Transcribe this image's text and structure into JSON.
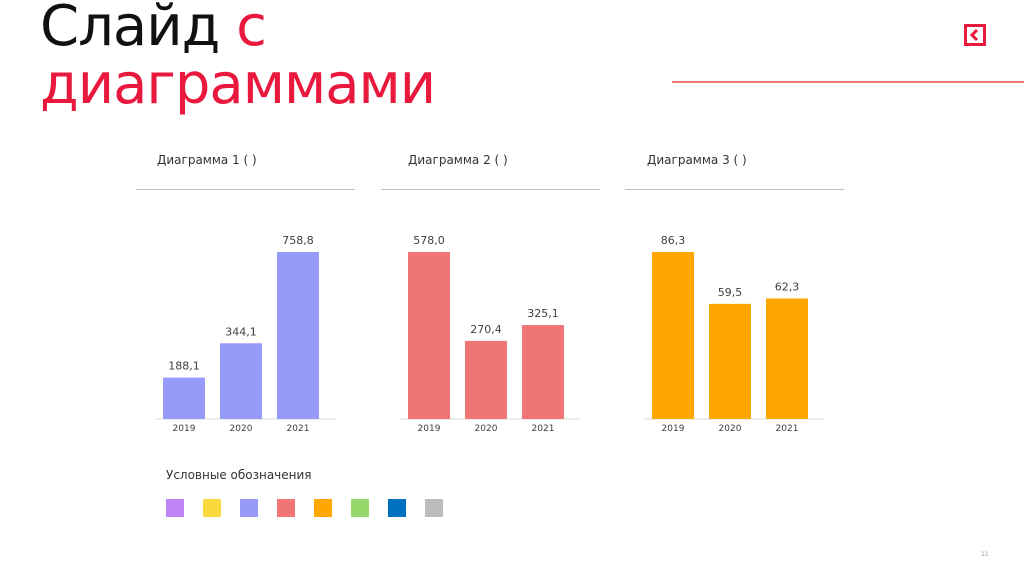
{
  "slide": {
    "title_part1": "Слайд",
    "title_part2": "с",
    "title_line2": "диаграммами",
    "page_number": "11"
  },
  "legend": {
    "title": "Условные обозначения",
    "swatches": [
      "#c084f5",
      "#fbd83e",
      "#969bf9",
      "#f07676",
      "#ffa600",
      "#97d86b",
      "#0071c1",
      "#bdbdbd"
    ]
  },
  "chart_data": [
    {
      "type": "bar",
      "title": "Диаграмма 1 ( )",
      "categories": [
        "2019",
        "2020",
        "2021"
      ],
      "values": [
        188.1,
        344.1,
        758.8
      ],
      "value_labels": [
        "188,1",
        "344,1",
        "758,8"
      ],
      "color": "#969bf9",
      "ylim": [
        0,
        758.8
      ]
    },
    {
      "type": "bar",
      "title": "Диаграмма 2 ( )",
      "categories": [
        "2019",
        "2020",
        "2021"
      ],
      "values": [
        578.0,
        270.4,
        325.1
      ],
      "value_labels": [
        "578,0",
        "270,4",
        "325,1"
      ],
      "color": "#f07676",
      "ylim": [
        0,
        578.0
      ]
    },
    {
      "type": "bar",
      "title": "Диаграмма 3 ( )",
      "categories": [
        "2019",
        "2020",
        "2021"
      ],
      "values": [
        86.3,
        59.5,
        62.3
      ],
      "value_labels": [
        "86,3",
        "59,5",
        "62,3"
      ],
      "color": "#ffa600",
      "ylim": [
        0,
        86.3
      ]
    }
  ]
}
